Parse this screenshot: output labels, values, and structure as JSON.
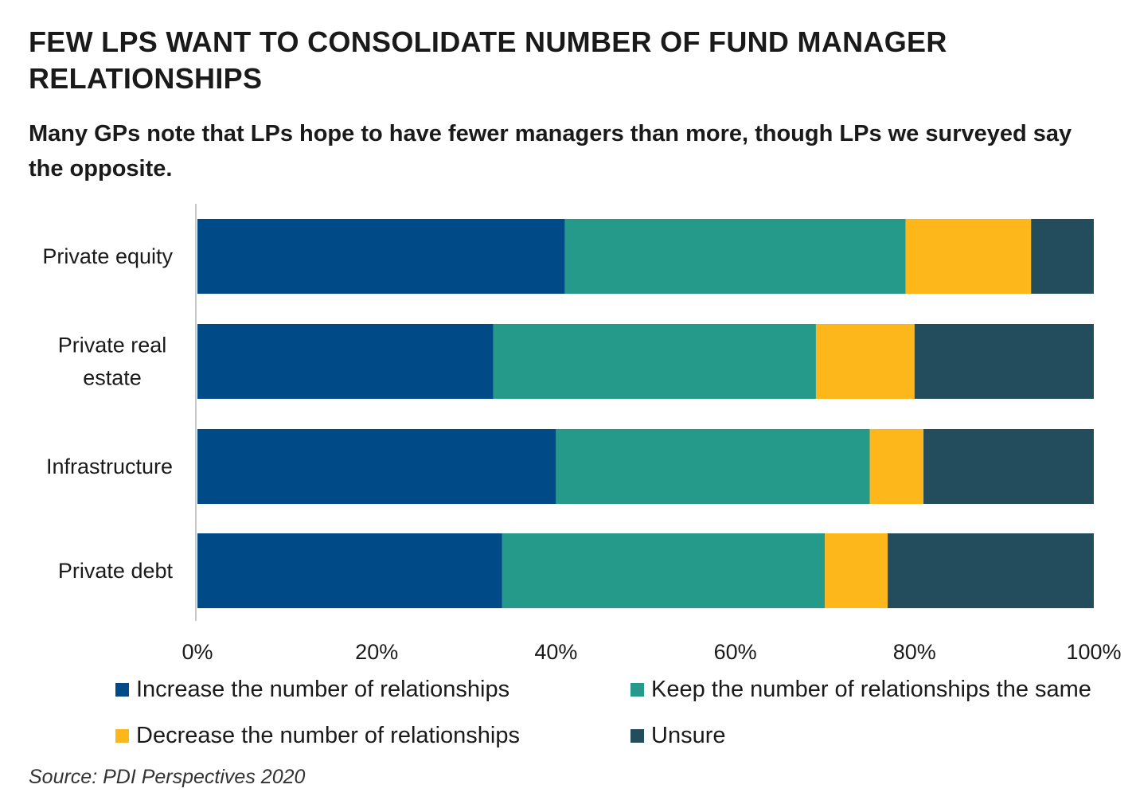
{
  "title": "FEW LPS  WANT TO CONSOLIDATE NUMBER OF FUND MANAGER RELATIONSHIPS",
  "subtitle": "Many GPs note that LPs hope to have fewer managers than more, though LPs we surveyed say the opposite.",
  "source": "Source: PDI Perspectives 2020",
  "colors": {
    "increase": "#004a87",
    "keep": "#259a8a",
    "decrease": "#fdb71a",
    "unsure": "#234c5c",
    "axis": "#c8c8c8"
  },
  "chart_data": {
    "type": "bar",
    "orientation": "horizontal",
    "stacked": true,
    "percent_stacked": true,
    "categories": [
      [
        "Private equity"
      ],
      [
        "Private real",
        "estate"
      ],
      [
        "Infrastructure"
      ],
      [
        "Private debt"
      ]
    ],
    "series": [
      {
        "name": "Increase the number of relationships",
        "color": "#004a87",
        "values": [
          41,
          33,
          40,
          34
        ]
      },
      {
        "name": "Keep the number of relationships the same",
        "color": "#259a8a",
        "values": [
          38,
          36,
          35,
          36
        ]
      },
      {
        "name": "Decrease the number of relationships",
        "color": "#fdb71a",
        "values": [
          14,
          11,
          6,
          7
        ]
      },
      {
        "name": "Unsure",
        "color": "#234c5c",
        "values": [
          7,
          20,
          19,
          23
        ]
      }
    ],
    "xlim": [
      0,
      100
    ],
    "xticks": [
      "0%",
      "20%",
      "40%",
      "60%",
      "80%",
      "100%"
    ],
    "grid": false,
    "legend_position": "bottom"
  }
}
